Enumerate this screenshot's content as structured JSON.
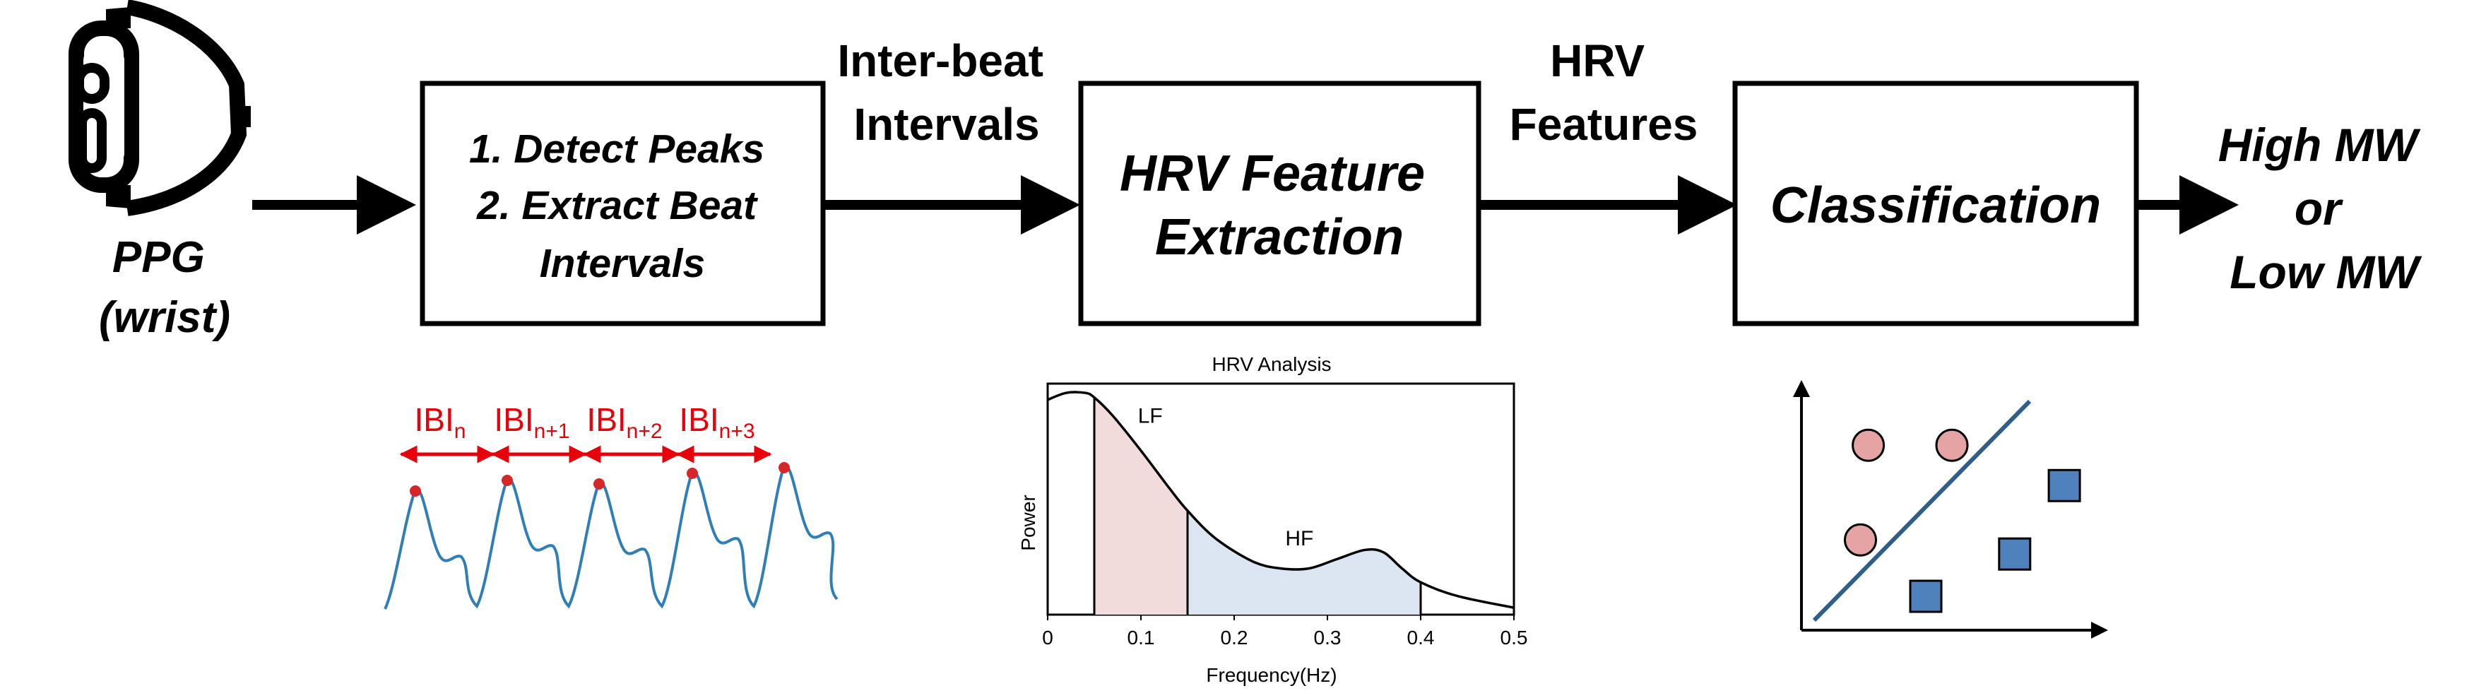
{
  "input": {
    "icon": "smartwatch-icon",
    "label_lines": [
      "PPG",
      "(wrist)"
    ]
  },
  "blocks": [
    {
      "lines": [
        "1. Detect Peaks",
        "2. Extract Beat",
        "Intervals"
      ]
    },
    {
      "lines": [
        "HRV Feature",
        "Extraction"
      ]
    },
    {
      "lines": [
        "Classification"
      ]
    }
  ],
  "edge_labels": [
    {
      "lines": [
        "Inter-beat",
        "Intervals"
      ]
    },
    {
      "lines": [
        "HRV",
        "Features"
      ]
    }
  ],
  "output": {
    "lines": [
      "High MW",
      "or",
      "Low MW"
    ]
  },
  "ibi": {
    "labels": [
      {
        "base": "IBI",
        "sub": "n"
      },
      {
        "base": "IBI",
        "sub": "n+1"
      },
      {
        "base": "IBI",
        "sub": "n+2"
      },
      {
        "base": "IBI",
        "sub": "n+3"
      }
    ],
    "colors": {
      "arrow": "#e8000b",
      "peak": "#d62728",
      "signal": "#2f7fb6"
    }
  },
  "chart_data": {
    "type": "area",
    "title": "HRV Analysis",
    "xlabel": "Frequency(Hz)",
    "ylabel": "Power",
    "xlim": [
      0,
      0.5
    ],
    "xticks": [
      "0",
      "0.1",
      "0.2",
      "0.3",
      "0.4",
      "0.5"
    ],
    "yticks_shown": false,
    "curve": {
      "x": [
        0,
        0.02,
        0.04,
        0.05,
        0.07,
        0.1,
        0.13,
        0.15,
        0.18,
        0.22,
        0.25,
        0.28,
        0.31,
        0.34,
        0.36,
        0.38,
        0.4,
        0.44,
        0.5
      ],
      "y": [
        0.93,
        0.96,
        0.96,
        0.94,
        0.86,
        0.71,
        0.55,
        0.45,
        0.33,
        0.23,
        0.2,
        0.2,
        0.24,
        0.28,
        0.27,
        0.2,
        0.14,
        0.08,
        0.03
      ]
    },
    "bands": [
      {
        "name": "LF",
        "range": [
          0.05,
          0.15
        ],
        "color": "#f2dcdb"
      },
      {
        "name": "HF",
        "range": [
          0.15,
          0.4
        ],
        "color": "#dce6f2"
      }
    ]
  },
  "classifier": {
    "class_a": {
      "shape": "circle",
      "color": "#e6a3a3",
      "points": [
        [
          0.18,
          0.82
        ],
        [
          0.5,
          0.82
        ],
        [
          0.15,
          0.35
        ]
      ]
    },
    "class_b": {
      "shape": "square",
      "color": "#4f81bd",
      "points": [
        [
          0.93,
          0.62
        ],
        [
          0.74,
          0.28
        ],
        [
          0.4,
          0.07
        ]
      ]
    },
    "boundary_color": "#2e5f8a"
  }
}
